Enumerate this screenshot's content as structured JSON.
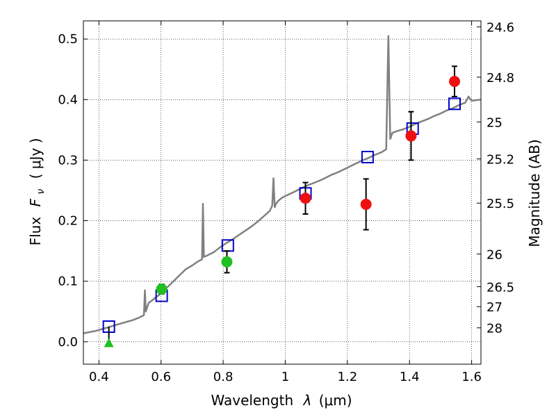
{
  "chart_data": {
    "type": "scatter",
    "xlabel_prefix": "Wavelength",
    "xlabel_symbol": "λ",
    "xlabel_unit": "(μm)",
    "ylabel_prefix": "Flux",
    "ylabel_symbol": "F",
    "ylabel_subscript": "ν",
    "ylabel_unit": "( μJy )",
    "y2label": "Magnitude (AB)",
    "xlim": [
      0.35,
      1.63
    ],
    "ylim": [
      -0.037,
      0.53
    ],
    "xticks": [
      0.4,
      0.6,
      0.8,
      1.0,
      1.2,
      1.4,
      1.6
    ],
    "xtick_labels": [
      "0.4",
      "0.6",
      "0.8",
      "1",
      "1.2",
      "1.4",
      "1.6"
    ],
    "yticks": [
      0.0,
      0.1,
      0.2,
      0.3,
      0.4,
      0.5
    ],
    "ytick_labels": [
      "0.0",
      "0.1",
      "0.2",
      "0.3",
      "0.4",
      "0.5"
    ],
    "y2ticks": [
      {
        "label": "24.6",
        "flux": 0.52
      },
      {
        "label": "24.8",
        "flux": 0.437
      },
      {
        "label": "25",
        "flux": 0.363
      },
      {
        "label": "25.2",
        "flux": 0.302
      },
      {
        "label": "25.5",
        "flux": 0.229
      },
      {
        "label": "26",
        "flux": 0.145
      },
      {
        "label": "26.5",
        "flux": 0.091
      },
      {
        "label": "27",
        "flux": 0.058
      },
      {
        "label": "28",
        "flux": 0.023
      }
    ],
    "grid": true,
    "spectrum": {
      "color": "#808080",
      "points": [
        [
          0.35,
          0.014
        ],
        [
          0.37,
          0.016
        ],
        [
          0.39,
          0.018
        ],
        [
          0.41,
          0.021
        ],
        [
          0.43,
          0.024
        ],
        [
          0.45,
          0.027
        ],
        [
          0.47,
          0.03
        ],
        [
          0.49,
          0.033
        ],
        [
          0.51,
          0.036
        ],
        [
          0.53,
          0.04
        ],
        [
          0.545,
          0.044
        ],
        [
          0.548,
          0.085
        ],
        [
          0.551,
          0.05
        ],
        [
          0.56,
          0.064
        ],
        [
          0.58,
          0.072
        ],
        [
          0.6,
          0.08
        ],
        [
          0.62,
          0.09
        ],
        [
          0.64,
          0.1
        ],
        [
          0.66,
          0.11
        ],
        [
          0.68,
          0.12
        ],
        [
          0.7,
          0.126
        ],
        [
          0.72,
          0.133
        ],
        [
          0.732,
          0.136
        ],
        [
          0.735,
          0.228
        ],
        [
          0.738,
          0.14
        ],
        [
          0.75,
          0.143
        ],
        [
          0.77,
          0.148
        ],
        [
          0.79,
          0.156
        ],
        [
          0.81,
          0.163
        ],
        [
          0.83,
          0.169
        ],
        [
          0.85,
          0.176
        ],
        [
          0.87,
          0.183
        ],
        [
          0.89,
          0.19
        ],
        [
          0.91,
          0.198
        ],
        [
          0.93,
          0.207
        ],
        [
          0.95,
          0.216
        ],
        [
          0.958,
          0.225
        ],
        [
          0.962,
          0.27
        ],
        [
          0.966,
          0.222
        ],
        [
          0.97,
          0.228
        ],
        [
          0.98,
          0.234
        ],
        [
          0.99,
          0.238
        ],
        [
          1.01,
          0.243
        ],
        [
          1.03,
          0.248
        ],
        [
          1.05,
          0.253
        ],
        [
          1.07,
          0.258
        ],
        [
          1.09,
          0.262
        ],
        [
          1.11,
          0.266
        ],
        [
          1.13,
          0.271
        ],
        [
          1.15,
          0.276
        ],
        [
          1.17,
          0.28
        ],
        [
          1.19,
          0.285
        ],
        [
          1.21,
          0.29
        ],
        [
          1.23,
          0.295
        ],
        [
          1.25,
          0.3
        ],
        [
          1.27,
          0.304
        ],
        [
          1.29,
          0.309
        ],
        [
          1.31,
          0.313
        ],
        [
          1.325,
          0.318
        ],
        [
          1.332,
          0.505
        ],
        [
          1.338,
          0.335
        ],
        [
          1.345,
          0.345
        ],
        [
          1.36,
          0.348
        ],
        [
          1.38,
          0.351
        ],
        [
          1.4,
          0.355
        ],
        [
          1.42,
          0.36
        ],
        [
          1.44,
          0.364
        ],
        [
          1.46,
          0.368
        ],
        [
          1.48,
          0.373
        ],
        [
          1.5,
          0.377
        ],
        [
          1.52,
          0.382
        ],
        [
          1.54,
          0.386
        ],
        [
          1.56,
          0.391
        ],
        [
          1.58,
          0.395
        ],
        [
          1.59,
          0.405
        ],
        [
          1.6,
          0.398
        ],
        [
          1.63,
          0.4
        ]
      ]
    },
    "model_points": {
      "color": "#0000cc",
      "x": [
        0.432,
        0.602,
        0.815,
        1.065,
        1.265,
        1.41,
        1.545
      ],
      "y": [
        0.025,
        0.076,
        0.159,
        0.245,
        0.305,
        0.352,
        0.393
      ]
    },
    "observed_green": {
      "color": "#20c020",
      "points": [
        {
          "x": 0.602,
          "y": 0.087,
          "err": 0.008
        },
        {
          "x": 0.812,
          "y": 0.132,
          "err": 0.018
        }
      ],
      "upper_limit": {
        "x": 0.432,
        "y": -0.002,
        "top": 0.025
      }
    },
    "observed_red": {
      "color": "#ee1111",
      "points": [
        {
          "x": 1.065,
          "y": 0.237,
          "err": 0.026
        },
        {
          "x": 1.26,
          "y": 0.227,
          "err": 0.042
        },
        {
          "x": 1.405,
          "y": 0.34,
          "err": 0.04
        },
        {
          "x": 1.545,
          "y": 0.43,
          "err": 0.025
        }
      ]
    }
  }
}
